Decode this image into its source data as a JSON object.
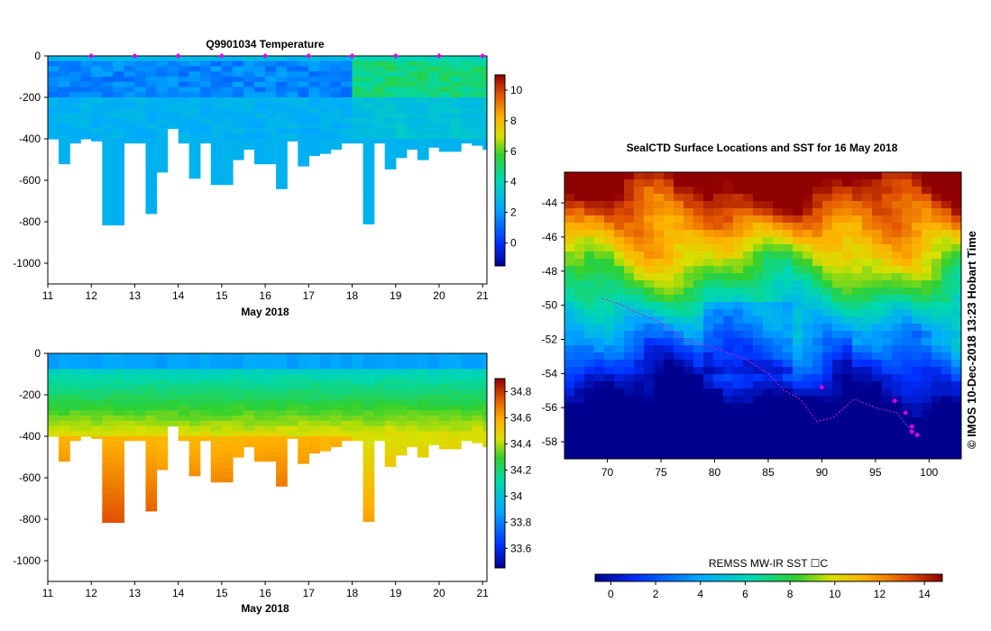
{
  "chart_data": [
    {
      "type": "heatmap",
      "title": "Q9901034  Temperature",
      "xlabel": "May 2018",
      "ylabel": "",
      "x_ticks": [
        "11",
        "12",
        "13",
        "14",
        "15",
        "16",
        "17",
        "18",
        "19",
        "20",
        "21"
      ],
      "y_ticks": [
        "0",
        "-200",
        "-400",
        "-600",
        "-800",
        "-1000"
      ],
      "xlim": [
        11,
        21.1
      ],
      "ylim": [
        -1100,
        0
      ],
      "colorbar": {
        "range": [
          -1.5,
          11
        ],
        "ticks": [
          "0",
          "2",
          "4",
          "6",
          "8",
          "10"
        ]
      },
      "profile_times": [
        11.0,
        11.25,
        11.5,
        11.75,
        12.0,
        12.25,
        12.5,
        12.75,
        13.0,
        13.25,
        13.5,
        13.75,
        14.0,
        14.25,
        14.5,
        14.75,
        15.0,
        15.25,
        15.5,
        15.75,
        16.0,
        16.25,
        16.5,
        16.75,
        17.0,
        17.25,
        17.5,
        17.75,
        18.0,
        18.25,
        18.5,
        18.75,
        19.0,
        19.25,
        19.5,
        19.75,
        20.0,
        20.25,
        20.5,
        20.75,
        21.0
      ],
      "profile_max_depth": [
        -400,
        -520,
        -420,
        -400,
        -410,
        -815,
        -815,
        -420,
        -420,
        -760,
        -560,
        -350,
        -420,
        -590,
        -420,
        -620,
        -620,
        -500,
        -450,
        -520,
        -520,
        -640,
        -410,
        -530,
        -480,
        -470,
        -450,
        -420,
        -420,
        -810,
        -420,
        -545,
        -490,
        -450,
        -500,
        -440,
        -460,
        -460,
        -420,
        -430,
        -450
      ],
      "surface_markers": [
        12,
        13,
        14,
        15,
        16,
        17,
        18,
        19,
        20,
        21
      ]
    },
    {
      "type": "heatmap",
      "title": "",
      "xlabel": "May 2018",
      "ylabel": "",
      "x_ticks": [
        "11",
        "12",
        "13",
        "14",
        "15",
        "16",
        "17",
        "18",
        "19",
        "20",
        "21"
      ],
      "y_ticks": [
        "0",
        "-200",
        "-400",
        "-600",
        "-800",
        "-1000"
      ],
      "xlim": [
        11,
        21.1
      ],
      "ylim": [
        -1100,
        0
      ],
      "colorbar": {
        "range": [
          33.45,
          34.9
        ],
        "ticks": [
          "33.6",
          "33.8",
          "34",
          "34.2",
          "34.4",
          "34.6",
          "34.8"
        ]
      }
    },
    {
      "type": "heatmap",
      "title": "SealCTD Surface Locations and SST for 16 May 2018",
      "xlabel": "",
      "ylabel": "",
      "x_ticks": [
        "70",
        "75",
        "80",
        "85",
        "90",
        "95",
        "100"
      ],
      "y_ticks": [
        "-44",
        "-46",
        "-48",
        "-50",
        "-52",
        "-54",
        "-56",
        "-58"
      ],
      "xlim": [
        66,
        103
      ],
      "ylim": [
        -59,
        -42.2
      ],
      "colorbar_label": "REMSS MW-IR SST ☐C",
      "colorbar": {
        "range": [
          -0.7,
          14.8
        ],
        "ticks": [
          "0",
          "2",
          "4",
          "6",
          "8",
          "10",
          "12",
          "14"
        ]
      },
      "seal_track": [
        [
          69.5,
          -49.6
        ],
        [
          71,
          -49.9
        ],
        [
          73,
          -50.5
        ],
        [
          75,
          -51
        ],
        [
          77,
          -52
        ],
        [
          80,
          -52.5
        ],
        [
          83,
          -53.2
        ],
        [
          85,
          -54
        ],
        [
          86.5,
          -55
        ],
        [
          88,
          -55.5
        ],
        [
          89.5,
          -56.8
        ],
        [
          91,
          -56.6
        ],
        [
          93,
          -55.5
        ],
        [
          95,
          -56
        ],
        [
          97,
          -56.3
        ],
        [
          98.5,
          -57.5
        ]
      ],
      "position_markers": [
        [
          96.8,
          -55.6
        ],
        [
          97.8,
          -56.3
        ],
        [
          98.4,
          -57.1
        ],
        [
          98.9,
          -57.6
        ],
        [
          98.4,
          -57.4
        ],
        [
          90,
          -54.8
        ]
      ]
    }
  ],
  "credit": "©  IMOS 10-Dec-2018 13:23 Hobart Time",
  "colors": {
    "marker": "#e000e0",
    "frame": "#000000"
  }
}
